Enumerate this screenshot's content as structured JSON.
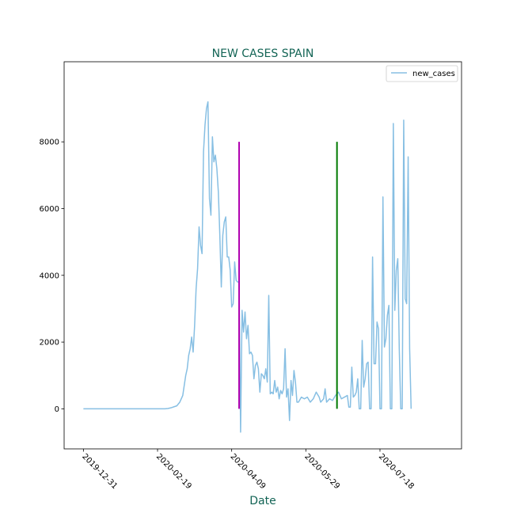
{
  "chart_data": {
    "type": "line",
    "title": "NEW CASES SPAIN",
    "xlabel": "Date",
    "ylabel": "",
    "xlim": [
      "2019-12-18",
      "2020-09-11"
    ],
    "ylim": [
      -1200,
      10400
    ],
    "x_ticks": [
      "2019-12-31",
      "2020-02-19",
      "2020-04-09",
      "2020-05-29",
      "2020-07-18"
    ],
    "y_ticks": [
      0,
      2000,
      4000,
      6000,
      8000
    ],
    "grid": false,
    "legend": {
      "position": "top-right",
      "entries": [
        "new_cases"
      ]
    },
    "series": [
      {
        "name": "new_cases",
        "color": "#87bfe3",
        "points": [
          [
            "2019-12-31",
            0
          ],
          [
            "2020-01-15",
            0
          ],
          [
            "2020-02-01",
            0
          ],
          [
            "2020-02-19",
            0
          ],
          [
            "2020-02-24",
            2
          ],
          [
            "2020-02-26",
            10
          ],
          [
            "2020-02-28",
            30
          ],
          [
            "2020-03-01",
            60
          ],
          [
            "2020-03-03",
            90
          ],
          [
            "2020-03-05",
            200
          ],
          [
            "2020-03-07",
            400
          ],
          [
            "2020-03-08",
            700
          ],
          [
            "2020-03-09",
            1000
          ],
          [
            "2020-03-10",
            1200
          ],
          [
            "2020-03-11",
            1600
          ],
          [
            "2020-03-12",
            1800
          ],
          [
            "2020-03-13",
            2150
          ],
          [
            "2020-03-14",
            1700
          ],
          [
            "2020-03-15",
            2500
          ],
          [
            "2020-03-16",
            3600
          ],
          [
            "2020-03-17",
            4200
          ],
          [
            "2020-03-18",
            5450
          ],
          [
            "2020-03-19",
            4900
          ],
          [
            "2020-03-20",
            4650
          ],
          [
            "2020-03-21",
            7700
          ],
          [
            "2020-03-22",
            8500
          ],
          [
            "2020-03-23",
            9000
          ],
          [
            "2020-03-24",
            9200
          ],
          [
            "2020-03-25",
            6300
          ],
          [
            "2020-03-26",
            5800
          ],
          [
            "2020-03-27",
            8150
          ],
          [
            "2020-03-28",
            7400
          ],
          [
            "2020-03-29",
            7600
          ],
          [
            "2020-03-30",
            7200
          ],
          [
            "2020-03-31",
            6500
          ],
          [
            "2020-04-01",
            5200
          ],
          [
            "2020-04-02",
            3650
          ],
          [
            "2020-04-03",
            5200
          ],
          [
            "2020-04-04",
            5600
          ],
          [
            "2020-04-05",
            5750
          ],
          [
            "2020-04-06",
            4550
          ],
          [
            "2020-04-07",
            4550
          ],
          [
            "2020-04-08",
            4150
          ],
          [
            "2020-04-09",
            3050
          ],
          [
            "2020-04-10",
            3150
          ],
          [
            "2020-04-11",
            4400
          ],
          [
            "2020-04-12",
            3850
          ],
          [
            "2020-04-13",
            3800
          ],
          [
            "2020-04-14",
            3800
          ],
          [
            "2020-04-15",
            -700
          ],
          [
            "2020-04-16",
            2950
          ],
          [
            "2020-04-17",
            2300
          ],
          [
            "2020-04-18",
            2900
          ],
          [
            "2020-04-19",
            2100
          ],
          [
            "2020-04-20",
            2500
          ],
          [
            "2020-04-21",
            1650
          ],
          [
            "2020-04-22",
            1700
          ],
          [
            "2020-04-23",
            1600
          ],
          [
            "2020-04-24",
            900
          ],
          [
            "2020-04-25",
            1300
          ],
          [
            "2020-04-26",
            1400
          ],
          [
            "2020-04-27",
            1200
          ],
          [
            "2020-04-28",
            500
          ],
          [
            "2020-04-29",
            1050
          ],
          [
            "2020-04-30",
            1000
          ],
          [
            "2020-05-01",
            900
          ],
          [
            "2020-05-02",
            1200
          ],
          [
            "2020-05-03",
            800
          ],
          [
            "2020-05-04",
            3400
          ],
          [
            "2020-05-05",
            450
          ],
          [
            "2020-05-06",
            500
          ],
          [
            "2020-05-07",
            450
          ],
          [
            "2020-05-08",
            850
          ],
          [
            "2020-05-09",
            500
          ],
          [
            "2020-05-10",
            650
          ],
          [
            "2020-05-11",
            300
          ],
          [
            "2020-05-12",
            550
          ],
          [
            "2020-05-13",
            450
          ],
          [
            "2020-05-14",
            600
          ],
          [
            "2020-05-15",
            1800
          ],
          [
            "2020-05-16",
            350
          ],
          [
            "2020-05-17",
            600
          ],
          [
            "2020-05-18",
            -350
          ],
          [
            "2020-05-19",
            850
          ],
          [
            "2020-05-20",
            400
          ],
          [
            "2020-05-21",
            1150
          ],
          [
            "2020-05-22",
            800
          ],
          [
            "2020-05-23",
            200
          ],
          [
            "2020-05-24",
            200
          ],
          [
            "2020-05-26",
            350
          ],
          [
            "2020-05-28",
            300
          ],
          [
            "2020-05-30",
            350
          ],
          [
            "2020-06-01",
            200
          ],
          [
            "2020-06-03",
            300
          ],
          [
            "2020-06-05",
            500
          ],
          [
            "2020-06-07",
            350
          ],
          [
            "2020-06-08",
            200
          ],
          [
            "2020-06-10",
            300
          ],
          [
            "2020-06-11",
            600
          ],
          [
            "2020-06-12",
            200
          ],
          [
            "2020-06-14",
            300
          ],
          [
            "2020-06-16",
            250
          ],
          [
            "2020-06-18",
            400
          ],
          [
            "2020-06-20",
            500
          ],
          [
            "2020-06-22",
            300
          ],
          [
            "2020-06-24",
            350
          ],
          [
            "2020-06-26",
            400
          ],
          [
            "2020-06-27",
            50
          ],
          [
            "2020-06-28",
            50
          ],
          [
            "2020-06-29",
            1250
          ],
          [
            "2020-06-30",
            350
          ],
          [
            "2020-07-01",
            400
          ],
          [
            "2020-07-02",
            500
          ],
          [
            "2020-07-03",
            900
          ],
          [
            "2020-07-04",
            0
          ],
          [
            "2020-07-05",
            0
          ],
          [
            "2020-07-06",
            2050
          ],
          [
            "2020-07-07",
            650
          ],
          [
            "2020-07-08",
            900
          ],
          [
            "2020-07-09",
            1350
          ],
          [
            "2020-07-10",
            1400
          ],
          [
            "2020-07-11",
            0
          ],
          [
            "2020-07-12",
            0
          ],
          [
            "2020-07-13",
            4550
          ],
          [
            "2020-07-14",
            1350
          ],
          [
            "2020-07-15",
            1350
          ],
          [
            "2020-07-16",
            2600
          ],
          [
            "2020-07-17",
            2400
          ],
          [
            "2020-07-18",
            0
          ],
          [
            "2020-07-19",
            0
          ],
          [
            "2020-07-20",
            6350
          ],
          [
            "2020-07-21",
            1850
          ],
          [
            "2020-07-22",
            2100
          ],
          [
            "2020-07-23",
            2800
          ],
          [
            "2020-07-24",
            3100
          ],
          [
            "2020-07-25",
            0
          ],
          [
            "2020-07-26",
            0
          ],
          [
            "2020-07-27",
            8550
          ],
          [
            "2020-07-28",
            2950
          ],
          [
            "2020-07-29",
            4150
          ],
          [
            "2020-07-30",
            4500
          ],
          [
            "2020-07-31",
            1800
          ],
          [
            "2020-08-01",
            0
          ],
          [
            "2020-08-02",
            0
          ],
          [
            "2020-08-03",
            8650
          ],
          [
            "2020-08-04",
            3300
          ],
          [
            "2020-08-05",
            3150
          ],
          [
            "2020-08-06",
            7550
          ],
          [
            "2020-08-07",
            1800
          ],
          [
            "2020-08-08",
            0
          ]
        ]
      }
    ],
    "annotations": [
      {
        "type": "vline",
        "x": "2020-04-14",
        "y_range": [
          0,
          8000
        ],
        "color": "#b000b0"
      },
      {
        "type": "vline",
        "x": "2020-06-19",
        "y_range": [
          0,
          8000
        ],
        "color": "#007a00"
      }
    ]
  }
}
